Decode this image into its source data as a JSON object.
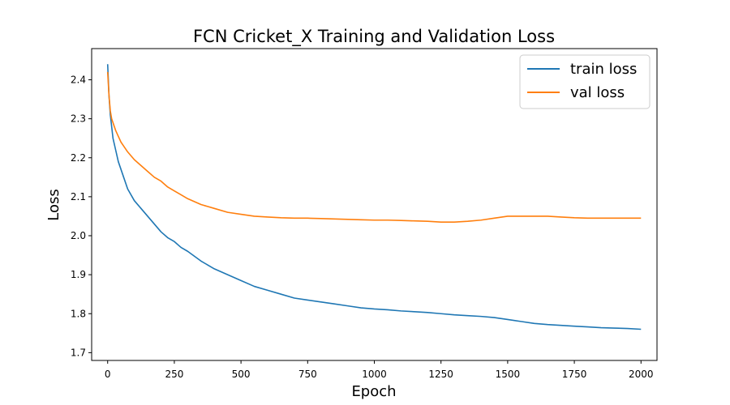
{
  "chart_data": {
    "type": "line",
    "title": "FCN Cricket_X Training and Validation Loss",
    "xlabel": "Epoch",
    "ylabel": "Loss",
    "xlim": [
      -60,
      2060
    ],
    "ylim": [
      1.68,
      2.48
    ],
    "xticks": [
      0,
      250,
      500,
      750,
      1000,
      1250,
      1500,
      1750,
      2000
    ],
    "xtick_labels": [
      "0",
      "250",
      "500",
      "750",
      "1000",
      "1250",
      "1500",
      "1750",
      "2000"
    ],
    "yticks": [
      1.7,
      1.8,
      1.9,
      2.0,
      2.1,
      2.2,
      2.3,
      2.4
    ],
    "ytick_labels": [
      "1.7",
      "1.8",
      "1.9",
      "2.0",
      "2.1",
      "2.2",
      "2.3",
      "2.4"
    ],
    "grid": false,
    "legend_position": "top-right",
    "series": [
      {
        "name": "train loss",
        "color": "#1f77b4",
        "x": [
          0,
          5,
          10,
          15,
          20,
          30,
          40,
          50,
          60,
          75,
          100,
          125,
          150,
          175,
          200,
          225,
          250,
          275,
          300,
          350,
          400,
          450,
          500,
          550,
          600,
          650,
          700,
          750,
          800,
          850,
          900,
          950,
          1000,
          1050,
          1100,
          1150,
          1200,
          1250,
          1300,
          1350,
          1400,
          1450,
          1500,
          1550,
          1600,
          1650,
          1700,
          1750,
          1800,
          1850,
          1900,
          1950,
          2000
        ],
        "y": [
          2.44,
          2.36,
          2.31,
          2.28,
          2.25,
          2.22,
          2.19,
          2.17,
          2.15,
          2.12,
          2.09,
          2.07,
          2.05,
          2.03,
          2.01,
          1.995,
          1.985,
          1.97,
          1.96,
          1.935,
          1.915,
          1.9,
          1.885,
          1.87,
          1.86,
          1.85,
          1.84,
          1.835,
          1.83,
          1.825,
          1.82,
          1.815,
          1.812,
          1.81,
          1.807,
          1.805,
          1.803,
          1.8,
          1.797,
          1.795,
          1.793,
          1.79,
          1.785,
          1.78,
          1.775,
          1.772,
          1.77,
          1.768,
          1.766,
          1.764,
          1.763,
          1.762,
          1.76
        ]
      },
      {
        "name": "val loss",
        "color": "#ff7f0e",
        "x": [
          0,
          5,
          10,
          15,
          20,
          30,
          40,
          50,
          60,
          75,
          100,
          125,
          150,
          175,
          200,
          225,
          250,
          275,
          300,
          350,
          400,
          450,
          500,
          550,
          600,
          650,
          700,
          750,
          800,
          850,
          900,
          950,
          1000,
          1050,
          1100,
          1150,
          1200,
          1250,
          1300,
          1350,
          1400,
          1450,
          1500,
          1550,
          1600,
          1650,
          1700,
          1750,
          1800,
          1850,
          1900,
          1950,
          2000
        ],
        "y": [
          2.42,
          2.36,
          2.32,
          2.3,
          2.29,
          2.27,
          2.255,
          2.24,
          2.23,
          2.215,
          2.195,
          2.18,
          2.165,
          2.15,
          2.14,
          2.125,
          2.115,
          2.105,
          2.095,
          2.08,
          2.07,
          2.06,
          2.055,
          2.05,
          2.048,
          2.046,
          2.045,
          2.045,
          2.044,
          2.043,
          2.042,
          2.041,
          2.04,
          2.04,
          2.039,
          2.038,
          2.037,
          2.035,
          2.035,
          2.037,
          2.04,
          2.045,
          2.05,
          2.05,
          2.05,
          2.05,
          2.048,
          2.046,
          2.045,
          2.045,
          2.045,
          2.045,
          2.045
        ]
      }
    ]
  }
}
